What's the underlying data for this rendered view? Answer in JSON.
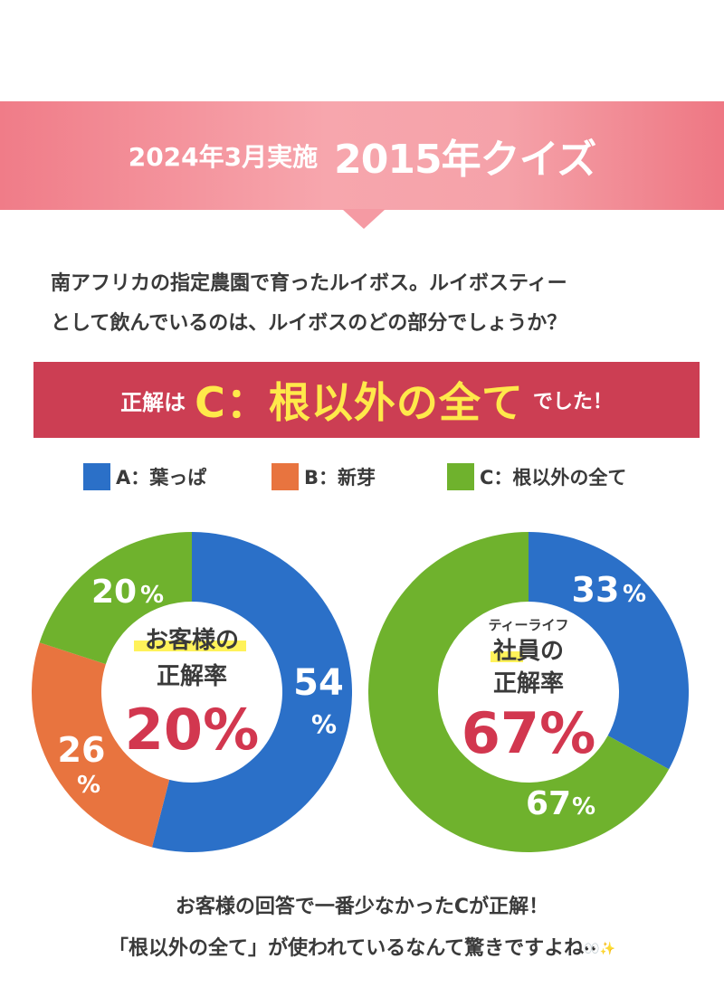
{
  "banner": {
    "date": "2024年3月実施",
    "title": "2015年クイズ"
  },
  "question": {
    "line1": "南アフリカの指定農園で育ったルイボス。ルイボスティー",
    "line2": "として飲んでいるのは、ルイボスのどの部分でしょうか？"
  },
  "answer": {
    "prefix": "正解は",
    "main": "C：根以外の全て",
    "suffix": "でした！"
  },
  "colors": {
    "A": "#2b70c8",
    "B": "#e8743f",
    "C": "#6fb22d",
    "highlight": "#fff25a",
    "accent": "#d2374f"
  },
  "legend": [
    {
      "label": "A：葉っぱ"
    },
    {
      "label": "B：新芽"
    },
    {
      "label": "C：根以外の全て"
    }
  ],
  "chart_data": [
    {
      "type": "pie",
      "categories": [
        "A：葉っぱ",
        "B：新芽",
        "C：根以外の全て"
      ],
      "values": [
        54,
        26,
        20
      ],
      "value_labels": [
        "54%",
        "26%",
        "20%"
      ],
      "center_label_line1": "お客様の",
      "center_label_line2": "正解率",
      "center_value": "20%"
    },
    {
      "type": "pie",
      "categories": [
        "A：葉っぱ",
        "C：根以外の全て"
      ],
      "values": [
        33,
        67
      ],
      "value_labels": [
        "33%",
        "67%"
      ],
      "center_small_label": "ティーライフ",
      "center_label_line1": "社員の",
      "center_label_line2": "正解率",
      "center_value": "67%"
    }
  ],
  "footer": {
    "line1": "お客様の回答で一番少なかったCが正解！",
    "line2": "「根以外の全て」が使われているなんて驚きですよね",
    "emoji": "👀✨"
  }
}
